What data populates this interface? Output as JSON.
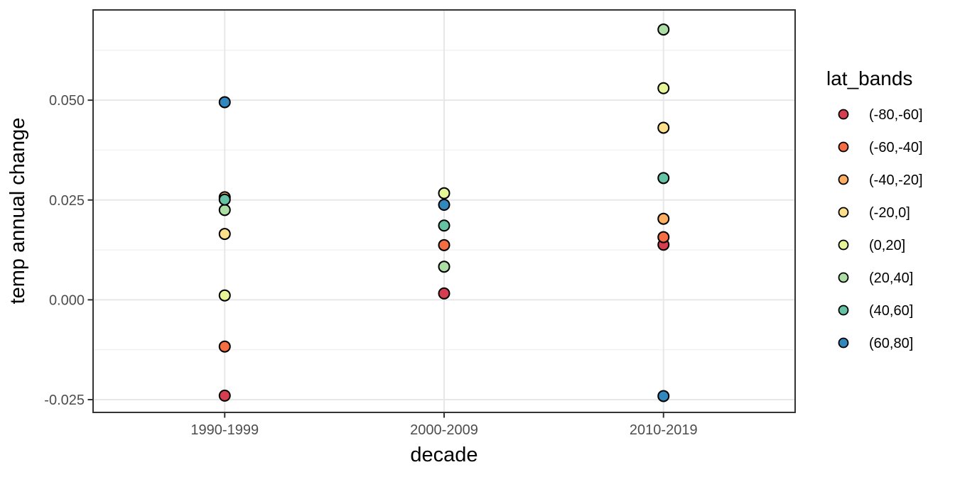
{
  "chart_data": {
    "type": "scatter",
    "title": "",
    "xlabel": "decade",
    "ylabel": "temp annual change",
    "legend_title": "lat_bands",
    "legend_position": "right",
    "grid": "on",
    "categories": [
      "1990-1999",
      "2000-2009",
      "2010-2019"
    ],
    "series": [
      {
        "name": "(-80,-60]",
        "color": "#d53e4f",
        "values": [
          -0.024,
          0.0016,
          0.0138
        ]
      },
      {
        "name": "(-60,-40]",
        "color": "#f46d43",
        "values": [
          -0.0117,
          0.0137,
          0.0157
        ]
      },
      {
        "name": "(-40,-20]",
        "color": "#fdae61",
        "values": [
          0.0257,
          null,
          0.0203
        ]
      },
      {
        "name": "(-20,0]",
        "color": "#fee08b",
        "values": [
          0.0165,
          null,
          0.0431
        ]
      },
      {
        "name": "(0,20]",
        "color": "#e6f598",
        "values": [
          0.0011,
          0.0267,
          0.053
        ]
      },
      {
        "name": "(20,40]",
        "color": "#abdda4",
        "values": [
          0.0225,
          0.0083,
          0.0677
        ]
      },
      {
        "name": "(40,60]",
        "color": "#66c2a5",
        "values": [
          0.0251,
          0.0186,
          0.0305
        ]
      },
      {
        "name": "(60,80]",
        "color": "#3288bd",
        "values": [
          0.0495,
          0.0238,
          -0.0241
        ]
      }
    ],
    "y_ticks": [
      {
        "label": "-0.025",
        "value": -0.025
      },
      {
        "label": "0.000",
        "value": 0.0
      },
      {
        "label": "0.025",
        "value": 0.025
      },
      {
        "label": "0.050",
        "value": 0.05
      }
    ],
    "y_minor_ticks": [
      -0.0125,
      0.0125,
      0.0375,
      0.0625
    ],
    "ylim": [
      -0.0282,
      0.0726
    ],
    "colors": {
      "background": "#ffffff",
      "panel_background": "#ffffff",
      "grid_major": "#e7e7e7",
      "grid_minor": "#f1f1f1",
      "panel_border": "#333333",
      "tick_mark": "#333333",
      "tick_label": "#4d4d4d",
      "title_text": "#000000",
      "point_stroke": "#000000"
    }
  }
}
